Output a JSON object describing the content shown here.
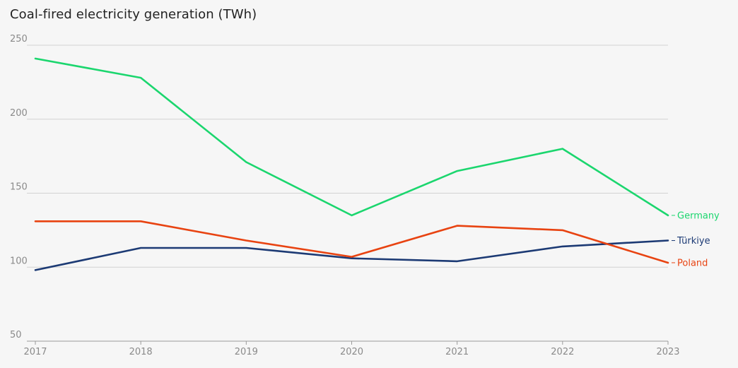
{
  "chart_data": {
    "type": "line",
    "title": "Coal-fired electricity generation (TWh)",
    "x": [
      "2017",
      "2018",
      "2019",
      "2020",
      "2021",
      "2022",
      "2023"
    ],
    "ylim": [
      50,
      250
    ],
    "yticks": [
      "50",
      "100",
      "150",
      "200",
      "250"
    ],
    "grid": "horizontal",
    "legend": "inline-right",
    "series": [
      {
        "name": "Germany",
        "color": "#1bd66e",
        "values": [
          241,
          228,
          171,
          135,
          165,
          180,
          135
        ]
      },
      {
        "name": "Türkiye",
        "color": "#1c3a74",
        "values": [
          98,
          113,
          113,
          106,
          104,
          114,
          118
        ]
      },
      {
        "name": "Poland",
        "color": "#e84311",
        "values": [
          131,
          131,
          118,
          107,
          128,
          125,
          103
        ]
      }
    ]
  }
}
